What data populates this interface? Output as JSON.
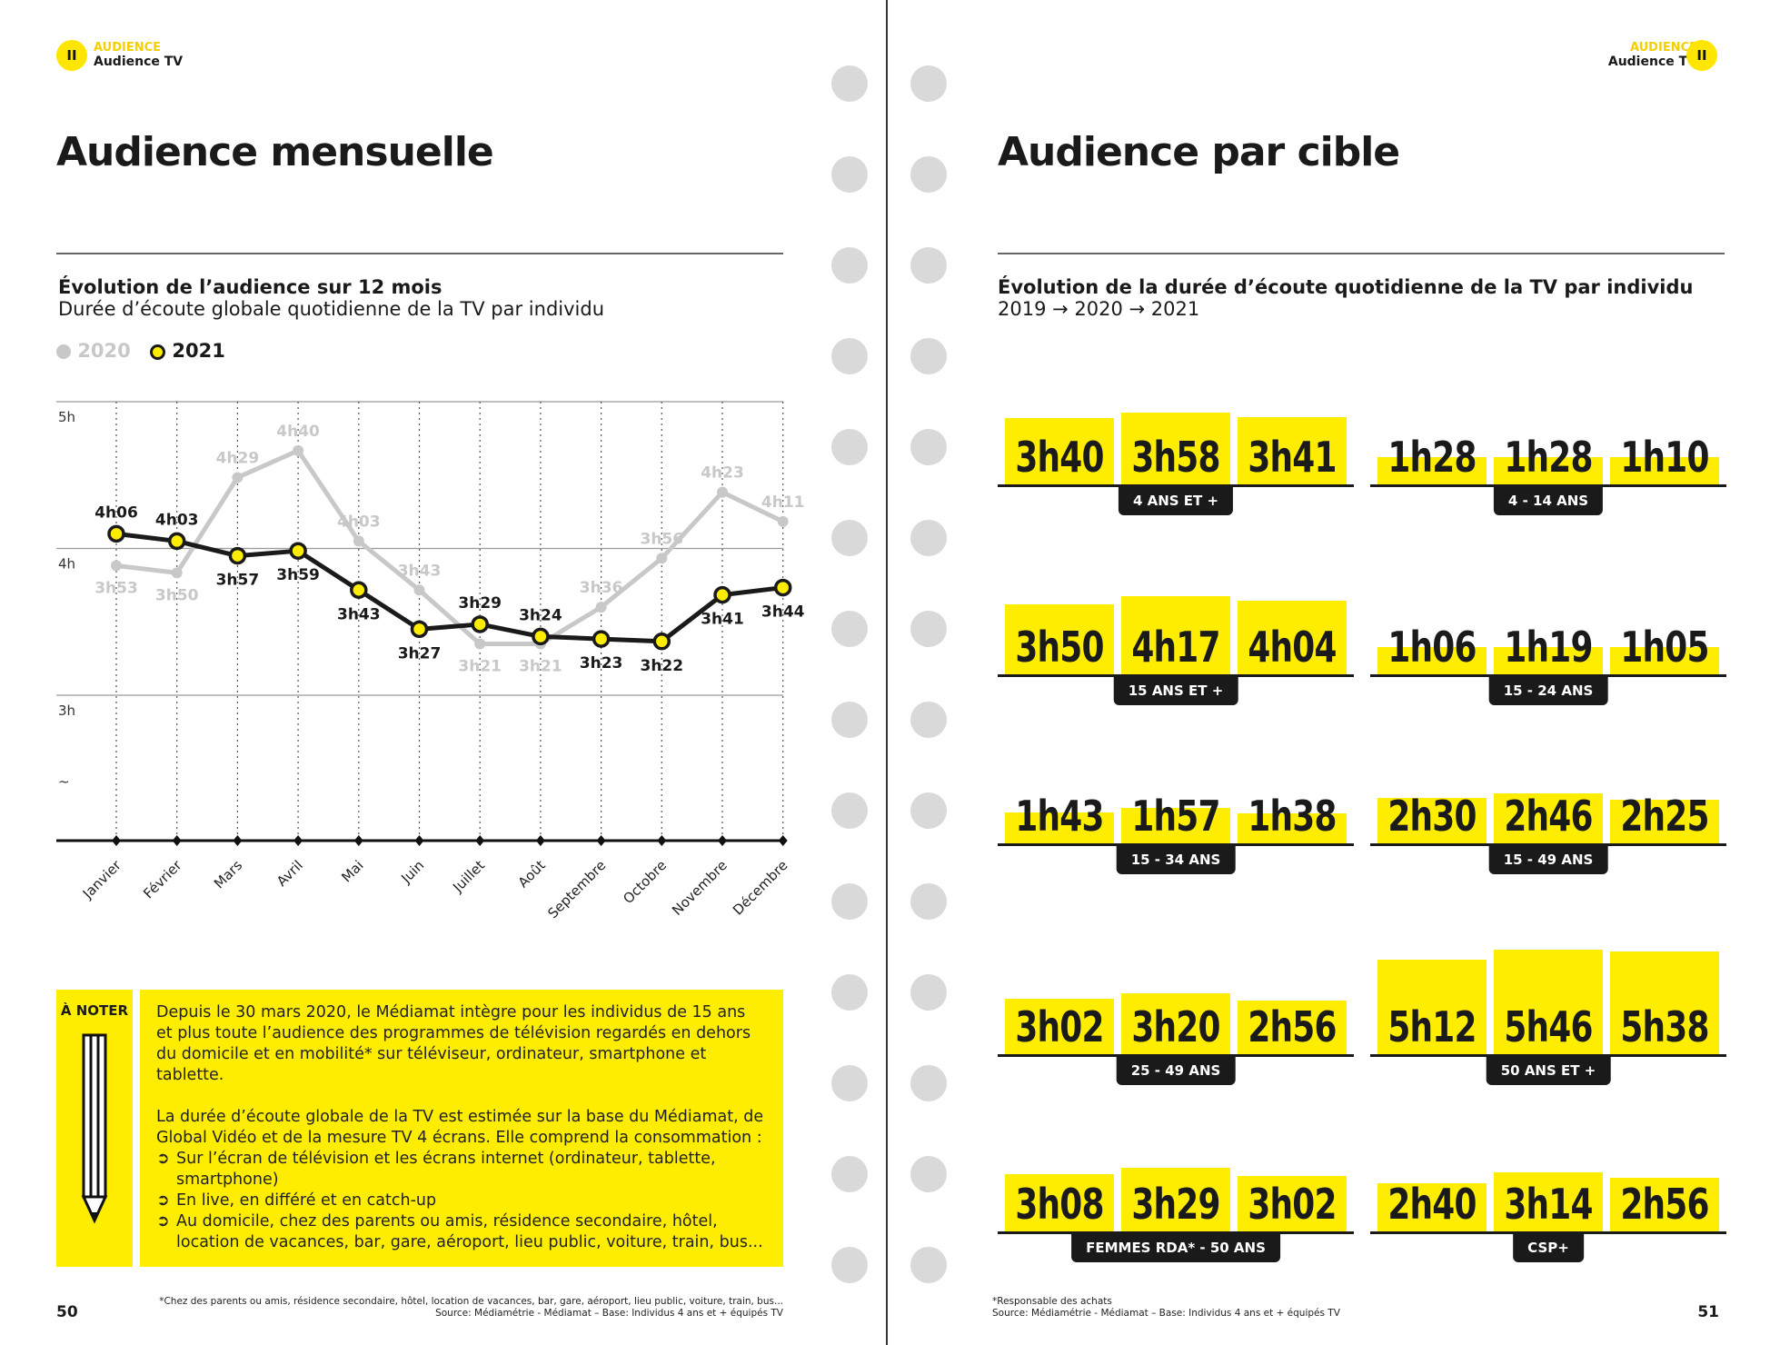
{
  "left_page": {
    "section_kicker": "AUDIENCE",
    "section_name": "Audience TV",
    "section_badge": "II",
    "title": "Audience mensuelle",
    "chart_title": "Évolution de l’audience sur 12 mois",
    "chart_subtitle": "Durée d’écoute globale quotidienne de la TV par individu",
    "note_label": "À NOTER",
    "note_p1": "Depuis le 30 mars 2020, le Médiamat intègre pour les individus de 15 ans et plus toute l’audience des programmes de télévision regardés en dehors du domicile et en mobilité* sur téléviseur, ordinateur, smartphone et tablette.",
    "note_p2": "La durée d’écoute globale de la TV est estimée sur la base du Médiamat, de Global Vidéo et de la mesure TV 4 écrans. Elle comprend la consommation :",
    "note_bullets": [
      "Sur l’écran de télévision et les écrans internet (ordinateur, tablette, smartphone)",
      "En live, en différé et en catch-up",
      "Au domicile, chez des parents ou amis, résidence secondaire, hôtel, location de vacances, bar, gare, aéroport, lieu public, voiture, train, bus..."
    ],
    "footnote": "*Chez des parents ou amis, résidence secondaire, hôtel, location de vacances, bar, gare, aéroport, lieu public, voiture, train, bus...",
    "source": "Source: Médiamétrie - Médiamat – Base: Individus 4 ans et + équipés TV",
    "page_number": "50"
  },
  "right_page": {
    "section_kicker": "AUDIENCE",
    "section_name": "Audience TV",
    "section_badge": "II",
    "title": "Audience par cible",
    "chart_title": "Évolution de la durée d’écoute quotidienne de la TV par individu",
    "chart_subtitle": "2019 → 2020 → 2021",
    "footnote": "*Responsable des achats",
    "source": "Source: Médiamétrie - Médiamat – Base: Individus 4 ans et + équipés TV",
    "page_number": "51"
  },
  "colors": {
    "accent": "#ffed00",
    "series_2020": "#c8c8c8",
    "series_2021": "#1a1a1a"
  },
  "chart_data": [
    {
      "type": "line",
      "categories": [
        "Janvier",
        "Février",
        "Mars",
        "Avril",
        "Mai",
        "Juin",
        "Juillet",
        "Août",
        "Septembre",
        "Octobre",
        "Novembre",
        "Décembre"
      ],
      "y_ticks": [
        "5h",
        "4h",
        "3h",
        "~"
      ],
      "ylim_minutes": [
        120,
        300
      ],
      "legend_position": "top-left",
      "series": [
        {
          "name": "2020",
          "labels": [
            "3h53",
            "3h50",
            "4h29",
            "4h40",
            "4h03",
            "3h43",
            "3h21",
            "3h21",
            "3h36",
            "3h56",
            "4h23",
            "4h11"
          ],
          "values_minutes": [
            233,
            230,
            269,
            280,
            243,
            223,
            201,
            201,
            216,
            236,
            263,
            251
          ]
        },
        {
          "name": "2021",
          "labels": [
            "4h06",
            "4h03",
            "3h57",
            "3h59",
            "3h43",
            "3h27",
            "3h29",
            "3h24",
            "3h23",
            "3h22",
            "3h41",
            "3h44"
          ],
          "values_minutes": [
            246,
            243,
            237,
            239,
            223,
            207,
            209,
            204,
            203,
            202,
            221,
            224
          ]
        }
      ]
    },
    {
      "type": "bar",
      "years": [
        "2019",
        "2020",
        "2021"
      ],
      "groups": [
        {
          "target": "4 ANS ET +",
          "labels": [
            "3h40",
            "3h58",
            "3h41"
          ],
          "values_minutes": [
            220,
            238,
            221
          ]
        },
        {
          "target": "4 - 14 ANS",
          "labels": [
            "1h28",
            "1h28",
            "1h10"
          ],
          "values_minutes": [
            88,
            88,
            70
          ]
        },
        {
          "target": "15 ANS ET +",
          "labels": [
            "3h50",
            "4h17",
            "4h04"
          ],
          "values_minutes": [
            230,
            257,
            244
          ]
        },
        {
          "target": "15 - 24 ANS",
          "labels": [
            "1h06",
            "1h19",
            "1h05"
          ],
          "values_minutes": [
            66,
            79,
            65
          ]
        },
        {
          "target": "15 - 34 ANS",
          "labels": [
            "1h43",
            "1h57",
            "1h38"
          ],
          "values_minutes": [
            103,
            117,
            98
          ]
        },
        {
          "target": "15 - 49 ANS",
          "labels": [
            "2h30",
            "2h46",
            "2h25"
          ],
          "values_minutes": [
            150,
            166,
            145
          ]
        },
        {
          "target": "25 - 49 ANS",
          "labels": [
            "3h02",
            "3h20",
            "2h56"
          ],
          "values_minutes": [
            182,
            200,
            176
          ]
        },
        {
          "target": "50 ANS ET +",
          "labels": [
            "5h12",
            "5h46",
            "5h38"
          ],
          "values_minutes": [
            312,
            346,
            338
          ]
        },
        {
          "target": "FEMMES RDA* - 50 ANS",
          "labels": [
            "3h08",
            "3h29",
            "3h02"
          ],
          "values_minutes": [
            188,
            209,
            182
          ]
        },
        {
          "target": "CSP+",
          "labels": [
            "2h40",
            "3h14",
            "2h56"
          ],
          "values_minutes": [
            160,
            194,
            176
          ]
        }
      ]
    }
  ]
}
